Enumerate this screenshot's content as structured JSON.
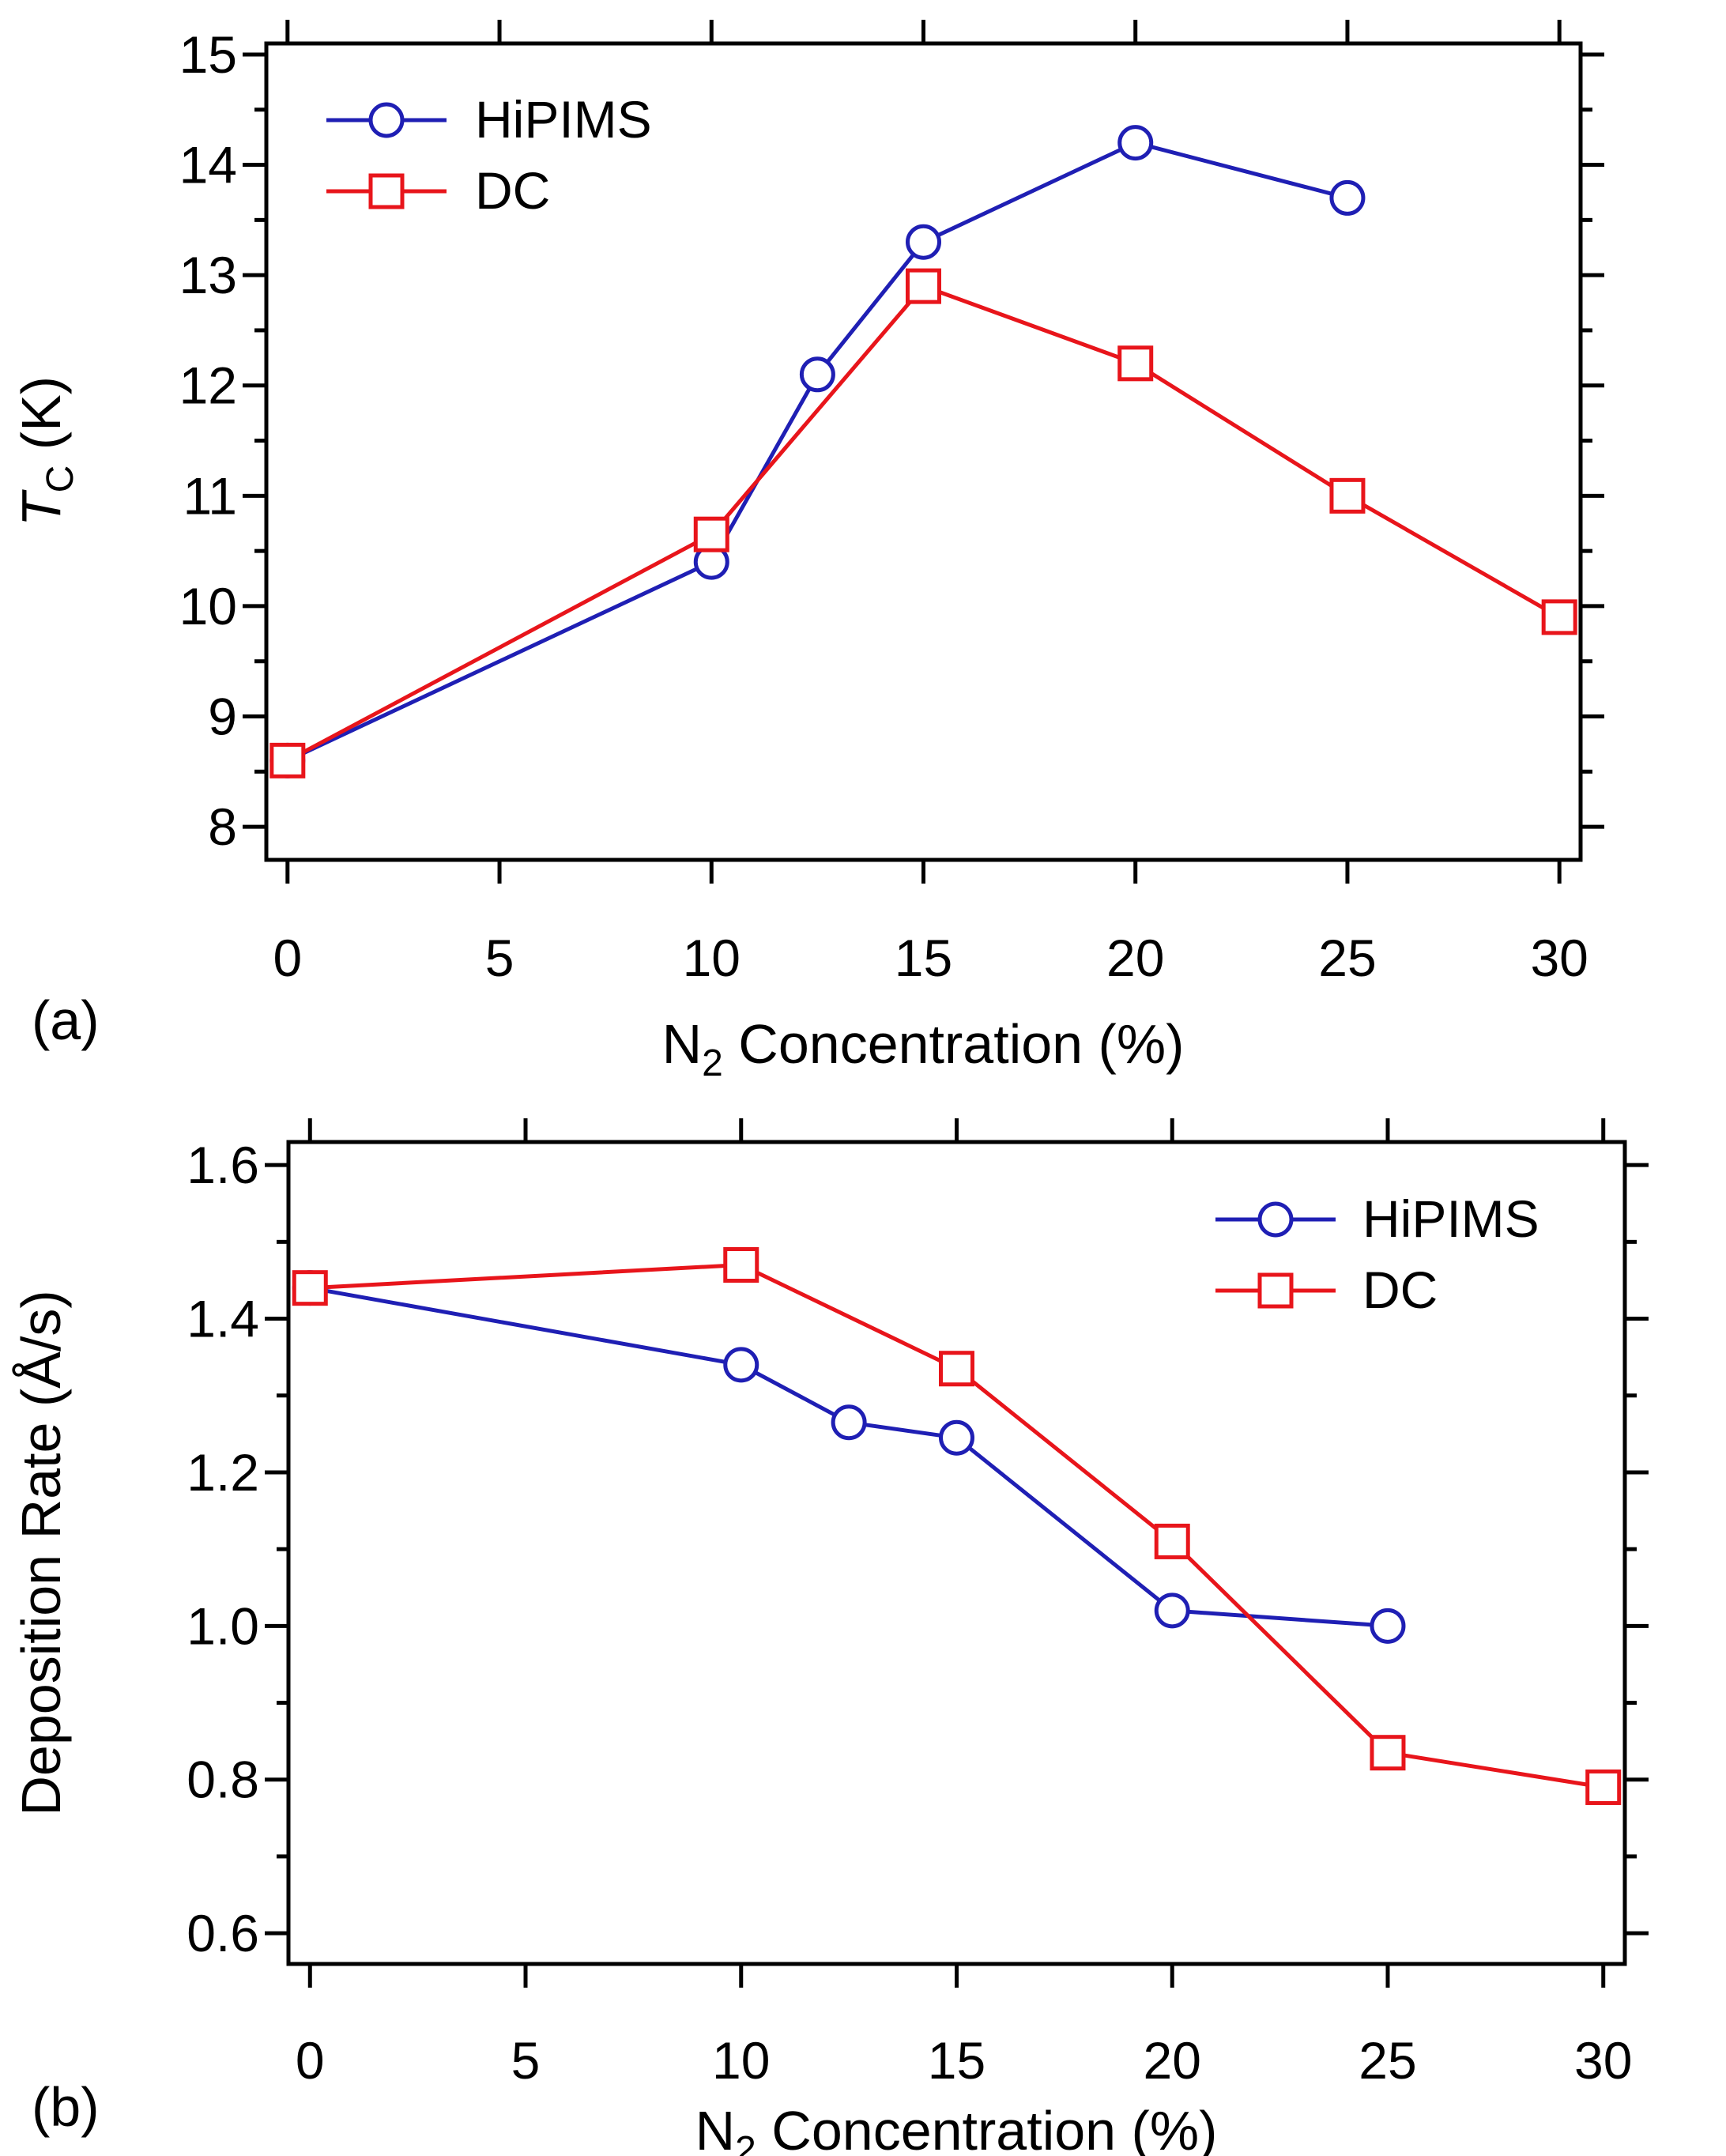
{
  "chart_data": [
    {
      "type": "line",
      "panel_label": "(a)",
      "x_ticks": [
        0,
        5,
        10,
        15,
        20,
        25,
        30
      ],
      "y_ticks": [
        8,
        9,
        10,
        11,
        12,
        13,
        14,
        15
      ],
      "xlim": [
        -0.5,
        30.5
      ],
      "ylim": [
        7.7,
        15.1
      ],
      "xlabel": {
        "prefix": "N",
        "sub": "2",
        "suffix": " Concentration (%)"
      },
      "ylabel": {
        "prefix": "T",
        "sub": "C",
        "suffix": " (K)"
      },
      "legend": {
        "position": "top-left"
      },
      "series": [
        {
          "name": "HiPIMS",
          "marker": "circle",
          "color": "#1f1fb4",
          "x": [
            0,
            10,
            12.5,
            15,
            20,
            25
          ],
          "y": [
            8.6,
            10.4,
            12.1,
            13.3,
            14.2,
            13.7
          ]
        },
        {
          "name": "DC",
          "marker": "square",
          "color": "#e8151b",
          "x": [
            0,
            10,
            15,
            20,
            25,
            30
          ],
          "y": [
            8.6,
            10.65,
            12.9,
            12.2,
            11.0,
            9.9
          ]
        }
      ]
    },
    {
      "type": "line",
      "panel_label": "(b)",
      "x_ticks": [
        0,
        5,
        10,
        15,
        20,
        25,
        30
      ],
      "y_ticks": [
        "0.6",
        "0.8",
        "1.0",
        "1.2",
        "1.4",
        "1.6"
      ],
      "xlim": [
        -0.5,
        30.5
      ],
      "ylim": [
        0.56,
        1.63
      ],
      "xlabel": {
        "prefix": "N",
        "sub": "2",
        "suffix": " Concentration (%)"
      },
      "ylabel": {
        "prefix": "Deposition Rate (Å/s)",
        "sub": "",
        "suffix": ""
      },
      "legend": {
        "position": "top-right"
      },
      "series": [
        {
          "name": "HiPIMS",
          "marker": "circle",
          "color": "#1f1fb4",
          "x": [
            0,
            10,
            12.5,
            15,
            20,
            25
          ],
          "y": [
            1.44,
            1.34,
            1.265,
            1.245,
            1.02,
            1.0
          ]
        },
        {
          "name": "DC",
          "marker": "square",
          "color": "#e8151b",
          "x": [
            0,
            10,
            15,
            20,
            25,
            30
          ],
          "y": [
            1.44,
            1.47,
            1.335,
            1.11,
            0.835,
            0.79
          ]
        }
      ]
    }
  ]
}
